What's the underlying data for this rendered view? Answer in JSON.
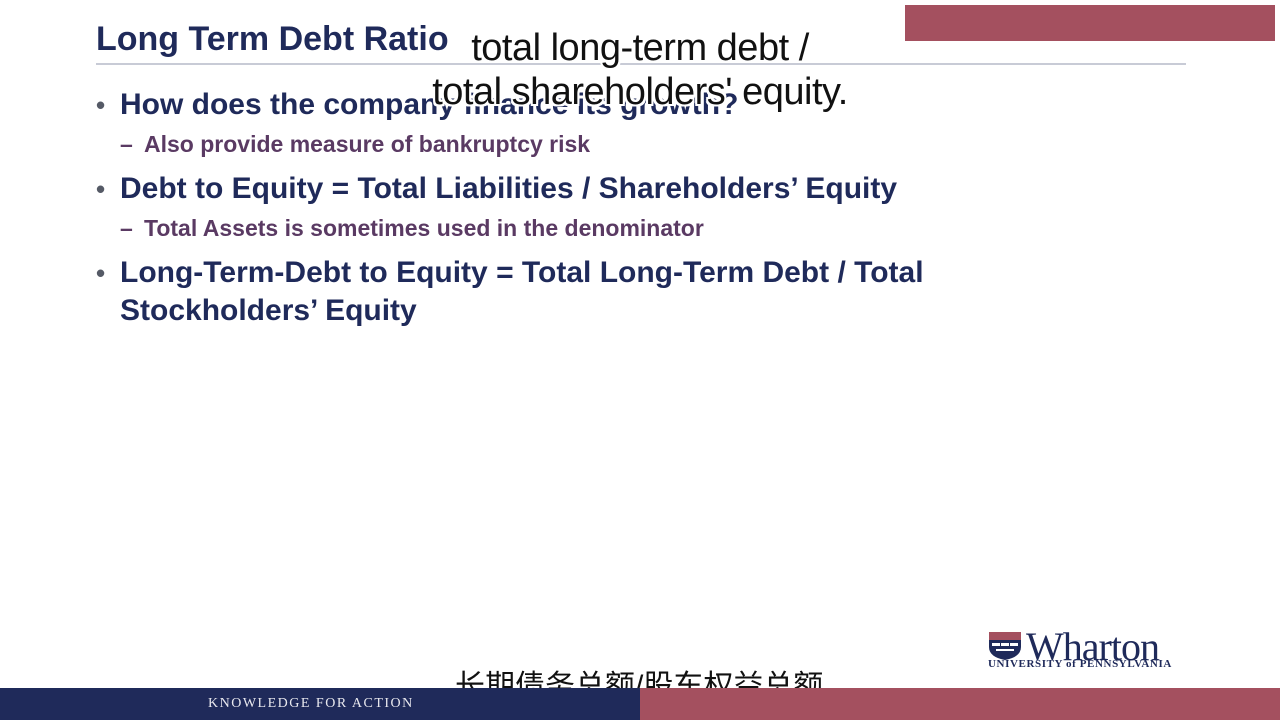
{
  "slide": {
    "title": "Long Term Debt Ratio",
    "bullets": [
      {
        "text": "How does the company finance its growth?",
        "sub": "Also provide measure of bankruptcy risk"
      },
      {
        "text": "Debt to Equity = Total Liabilities / Shareholders’ Equity",
        "sub": "Total Assets is sometimes used in the denominator"
      },
      {
        "text": "Long-Term-Debt to Equity = Total Long-Term Debt / Total Stockholders’ Equity",
        "sub": ""
      }
    ],
    "bullet_glyph": "•",
    "sub_glyph": "–"
  },
  "captions": {
    "english_line1": "total long-term debt /",
    "english_line2": "total shareholders' equity.",
    "chinese": "长期债务总额/股东权益总额。"
  },
  "branding": {
    "wordmark": "Wharton",
    "university": "UNIVERSITY of PENNSYLVANIA",
    "tagline": "KNOWLEDGE FOR ACTION"
  },
  "colors": {
    "navy": "#1f2a5a",
    "maroon": "#a4505f",
    "sub_text": "#5a3a63"
  }
}
